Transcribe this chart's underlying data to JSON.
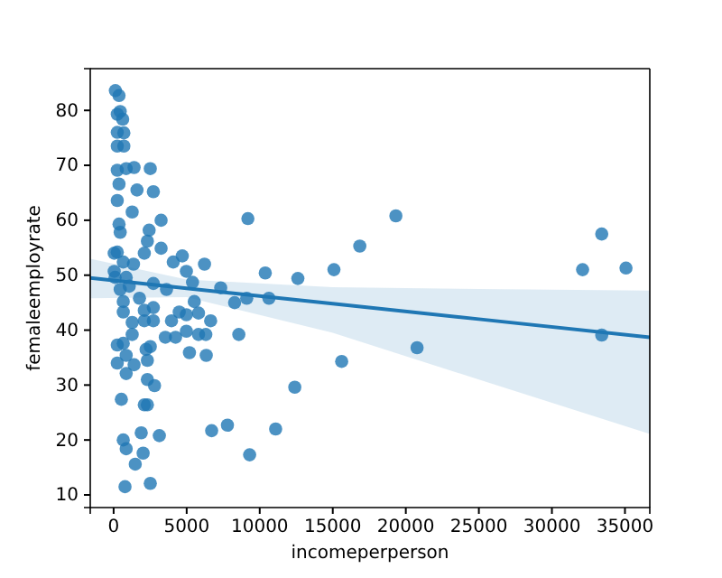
{
  "chart_data": {
    "type": "scatter",
    "xlabel": "incomeperperson",
    "ylabel": "femaleemployrate",
    "xlim": [
      -1600,
      36700
    ],
    "ylim": [
      7.7,
      87.6
    ],
    "xticks": [
      0,
      5000,
      10000,
      15000,
      20000,
      25000,
      30000,
      35000
    ],
    "yticks": [
      10,
      20,
      30,
      40,
      50,
      60,
      70,
      80
    ],
    "grid": false,
    "series": [
      {
        "marker": "circle",
        "color": "#1f77b4",
        "x": [
          120,
          370,
          450,
          250,
          620,
          250,
          700,
          250,
          700,
          250,
          860,
          1400,
          2510,
          370,
          1600,
          2720,
          250,
          1270,
          370,
          3250,
          450,
          2430,
          2310,
          3250,
          2100,
          250,
          660,
          1360,
          4700,
          4080,
          6220,
          4980,
          40,
          860,
          2720,
          5400,
          3620,
          7330,
          8280,
          9110,
          10630,
          10380,
          9190,
          660,
          1770,
          5520,
          660,
          2100,
          2720,
          4490,
          4980,
          5810,
          1270,
          2100,
          2720,
          3960,
          6640,
          1270,
          3540,
          4240,
          4980,
          5810,
          6310,
          8570,
          250,
          660,
          2510,
          2220,
          5190,
          6340,
          250,
          860,
          1400,
          2310,
          860,
          2310,
          2800,
          530,
          2100,
          2310,
          6710,
          7790,
          11090,
          1890,
          3130,
          660,
          860,
          2020,
          9310,
          1480,
          780,
          2510,
          40,
          100,
          1070,
          450,
          12610,
          15080,
          16850,
          19320,
          32100,
          33410,
          35070,
          33410,
          20770,
          15610,
          12400
        ],
        "values": [
          83.6,
          82.7,
          79.8,
          79.3,
          78.4,
          76,
          75.9,
          73.5,
          73.5,
          69.1,
          69.4,
          69.6,
          69.4,
          66.6,
          65.5,
          65.2,
          63.6,
          61.5,
          59.3,
          60,
          57.8,
          58.2,
          56.2,
          54.9,
          54,
          54.2,
          52.4,
          52,
          53.5,
          52.4,
          52,
          50.7,
          50.7,
          49.6,
          48.5,
          48.7,
          47.4,
          47.7,
          45,
          45.8,
          45.8,
          50.4,
          60.3,
          45.2,
          45.8,
          45.2,
          43.3,
          43.6,
          44.1,
          43.3,
          42.8,
          43.1,
          41.4,
          41.7,
          41.7,
          41.7,
          41.7,
          39.2,
          38.7,
          38.7,
          39.8,
          39.2,
          39.2,
          39.2,
          37.3,
          37.6,
          37,
          36.5,
          35.9,
          35.4,
          34,
          35.4,
          33.7,
          34.5,
          32.1,
          31,
          29.9,
          27.4,
          26.4,
          26.4,
          21.7,
          22.7,
          22,
          21.3,
          20.8,
          20,
          18.4,
          17.6,
          17.3,
          15.6,
          11.5,
          12.1,
          54,
          49.6,
          48,
          47.4,
          49.4,
          51,
          55.3,
          60.8,
          51,
          57.5,
          51.3,
          39.1,
          36.8,
          34.3,
          29.6
        ]
      },
      {
        "type": "line",
        "color": "#1f77b4",
        "x": [
          -1600,
          5000,
          15000,
          25000,
          36700
        ],
        "values": [
          49.5,
          47.6,
          44.8,
          42,
          38.7
        ],
        "lower": [
          45.8,
          46,
          39.5,
          31,
          21.1
        ],
        "upper": [
          53,
          49.2,
          47.8,
          47.5,
          47.2
        ]
      }
    ]
  }
}
